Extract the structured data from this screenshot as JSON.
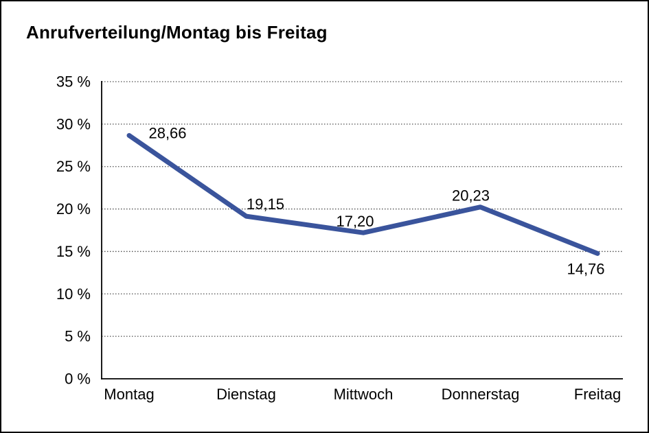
{
  "window": {
    "background_color": "#ffffff",
    "frame_border_color": "#000000"
  },
  "chart_data": {
    "type": "line",
    "title": "Anrufverteilung/Montag bis Freitag",
    "categories": [
      "Montag",
      "Dienstag",
      "Mittwoch",
      "Donnerstag",
      "Freitag"
    ],
    "series": [
      {
        "name": "Anrufverteilung",
        "values": [
          28.66,
          19.15,
          17.2,
          20.23,
          14.76
        ]
      }
    ],
    "point_labels": [
      "28,66",
      "19,15",
      "17,20",
      "20,23",
      "14,76"
    ],
    "xlabel": "",
    "ylabel": "",
    "ylim": [
      0,
      35
    ],
    "ytick_step": 5,
    "ytick_labels": [
      "0 %",
      "5 %",
      "10 %",
      "15 %",
      "20 %",
      "25 %",
      "30 %",
      "35 %"
    ],
    "grid": "horizontal-dotted",
    "legend": "none",
    "line_color": "#3A549C",
    "gridline_color": "#4D4D4D",
    "axis_color": "#000000",
    "text_color": "#000000"
  }
}
